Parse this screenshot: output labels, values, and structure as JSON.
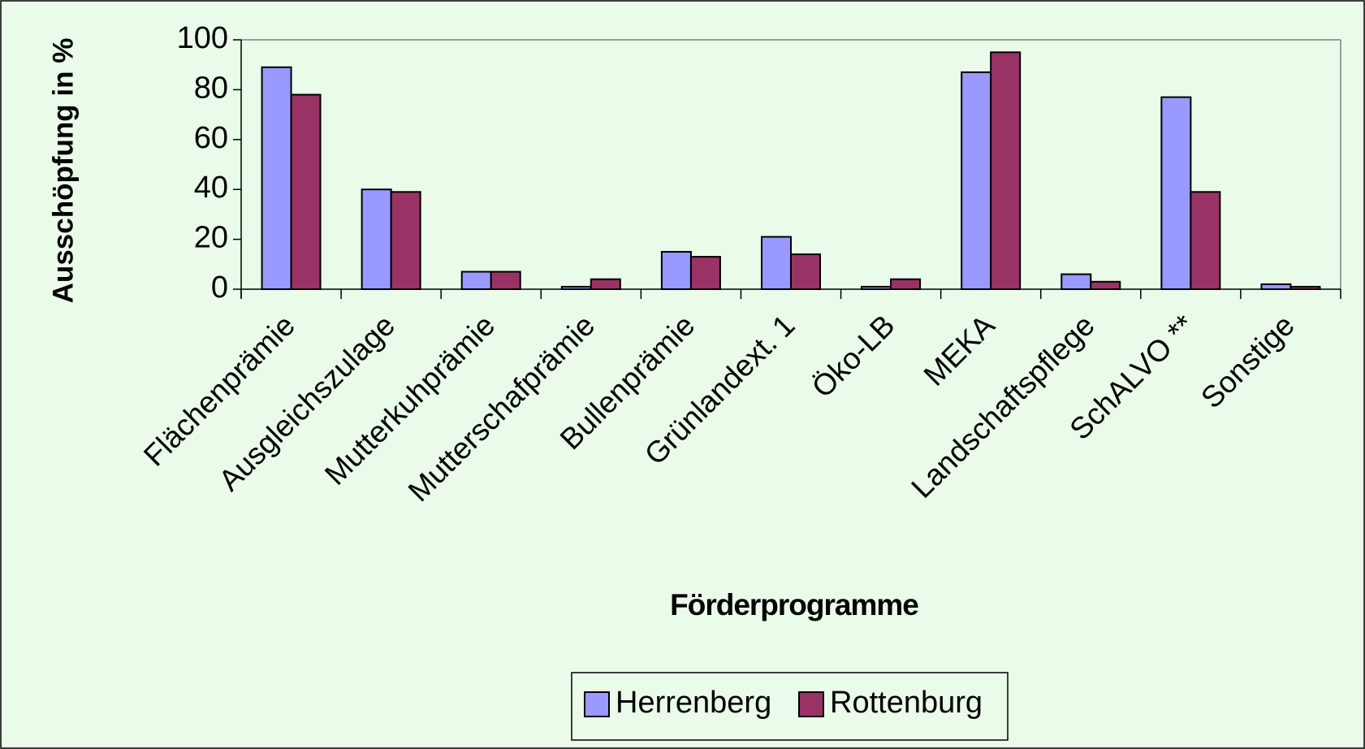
{
  "chart_data": {
    "type": "bar",
    "x_label": "Förderprogramme",
    "y_label": "Ausschöpfung in %",
    "categories": [
      "Flächenprämie",
      "Ausgleichszulage",
      "Mutterkuhprämie",
      "Mutterschafprämie",
      "Bullenprämie",
      "Grünlandext. 1",
      "Öko-LB",
      "MEKA",
      "Landschaftspflege",
      "SchALVO **",
      "Sonstige"
    ],
    "series": [
      {
        "name": "Herrenberg",
        "color": "#9999ff",
        "values": [
          89,
          40,
          7,
          1,
          15,
          21,
          1,
          87,
          6,
          77,
          2
        ]
      },
      {
        "name": "Rottenburg",
        "color": "#993366",
        "values": [
          78,
          39,
          7,
          4,
          13,
          14,
          4,
          95,
          3,
          39,
          1
        ]
      }
    ],
    "ylim": [
      0,
      100
    ],
    "yticks": [
      0,
      20,
      40,
      60,
      80,
      100
    ],
    "legend": "bottom"
  }
}
